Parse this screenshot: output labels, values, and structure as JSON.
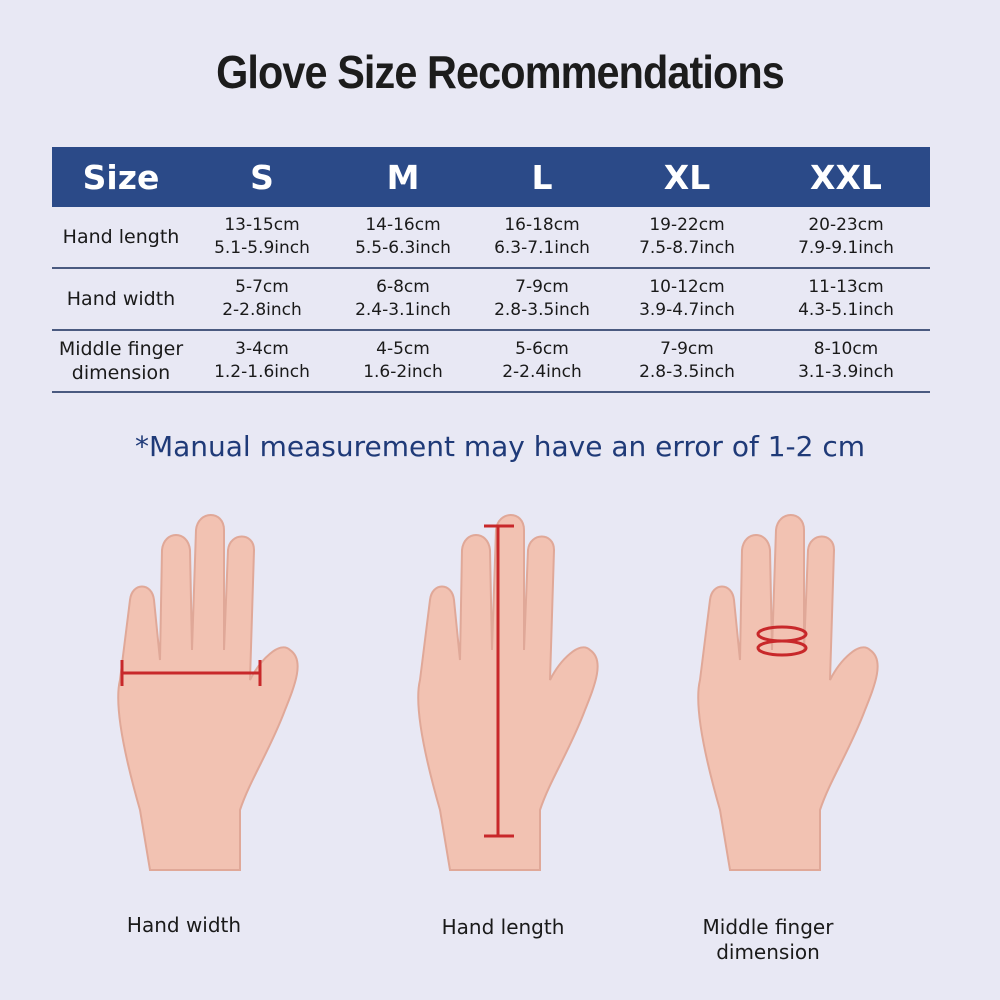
{
  "title": "Glove Size Recommendations",
  "table": {
    "headers": [
      "Size",
      "S",
      "M",
      "L",
      "XL",
      "XXL"
    ],
    "rows": [
      {
        "label": "Hand length",
        "cells": [
          [
            "13-15cm",
            "5.1-5.9inch"
          ],
          [
            "14-16cm",
            "5.5-6.3inch"
          ],
          [
            "16-18cm",
            "6.3-7.1inch"
          ],
          [
            "19-22cm",
            "7.5-8.7inch"
          ],
          [
            "20-23cm",
            "7.9-9.1inch"
          ]
        ]
      },
      {
        "label": "Hand width",
        "cells": [
          [
            "5-7cm",
            "2-2.8inch"
          ],
          [
            "6-8cm",
            "2.4-3.1inch"
          ],
          [
            "7-9cm",
            "2.8-3.5inch"
          ],
          [
            "10-12cm",
            "3.9-4.7inch"
          ],
          [
            "11-13cm",
            "4.3-5.1inch"
          ]
        ]
      },
      {
        "label": "Middle finger dimension",
        "cells": [
          [
            "3-4cm",
            "1.2-1.6inch"
          ],
          [
            "4-5cm",
            "1.6-2inch"
          ],
          [
            "5-6cm",
            "2-2.4inch"
          ],
          [
            "7-9cm",
            "2.8-3.5inch"
          ],
          [
            "8-10cm",
            "3.1-3.9inch"
          ]
        ]
      }
    ]
  },
  "note": "*Manual measurement may have an error of 1-2 cm",
  "illustrations": [
    {
      "caption": "Hand width",
      "measure": "width"
    },
    {
      "caption": "Hand length",
      "measure": "length"
    },
    {
      "caption": "Middle finger dimension",
      "measure": "finger"
    }
  ],
  "colors": {
    "header": "#2b4a88",
    "measure": "#c8282a",
    "skin": "#f2c2b2",
    "background": "#e8e8f4"
  }
}
